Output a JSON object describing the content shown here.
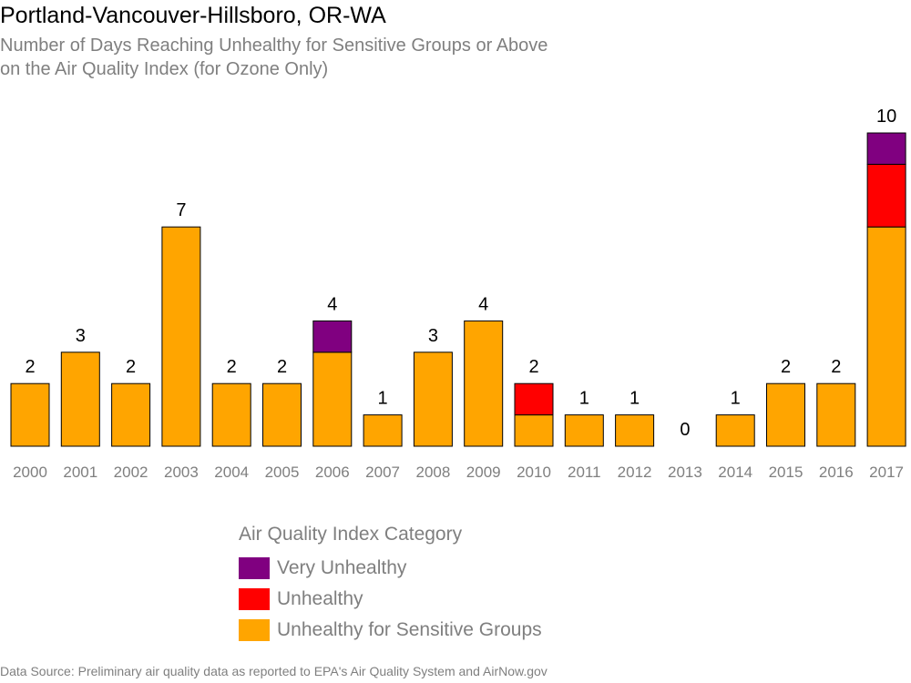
{
  "chart_data": {
    "type": "bar",
    "stacked": true,
    "title": "Portland-Vancouver-Hillsboro, OR-WA",
    "subtitle_lines": [
      "Number of Days Reaching Unhealthy for Sensitive Groups or Above",
      "on the Air Quality Index (for Ozone Only)"
    ],
    "categories": [
      "2000",
      "2001",
      "2002",
      "2003",
      "2004",
      "2005",
      "2006",
      "2007",
      "2008",
      "2009",
      "2010",
      "2011",
      "2012",
      "2013",
      "2014",
      "2015",
      "2016",
      "2017"
    ],
    "series": [
      {
        "name": "Unhealthy for Sensitive Groups",
        "color": "#FFA500",
        "values": [
          2,
          3,
          2,
          7,
          2,
          2,
          3,
          1,
          3,
          4,
          1,
          1,
          1,
          0,
          1,
          2,
          2,
          7
        ]
      },
      {
        "name": "Unhealthy",
        "color": "#FF0000",
        "values": [
          0,
          0,
          0,
          0,
          0,
          0,
          0,
          0,
          0,
          0,
          1,
          0,
          0,
          0,
          0,
          0,
          0,
          2
        ]
      },
      {
        "name": "Very Unhealthy",
        "color": "#800080",
        "values": [
          0,
          0,
          0,
          0,
          0,
          0,
          1,
          0,
          0,
          0,
          0,
          0,
          0,
          0,
          0,
          0,
          0,
          1
        ]
      }
    ],
    "totals": [
      "2",
      "3",
      "2",
      "7",
      "2",
      "2",
      "4",
      "1",
      "3",
      "4",
      "2",
      "1",
      "1",
      "0",
      "1",
      "2",
      "2",
      "10"
    ],
    "ylim": [
      0,
      10
    ],
    "grid": false,
    "legend": {
      "title": "Air Quality Index Category",
      "placement": "bottom-center",
      "items": [
        {
          "label": "Very Unhealthy",
          "color": "#800080"
        },
        {
          "label": "Unhealthy",
          "color": "#FF0000"
        },
        {
          "label": "Unhealthy for Sensitive Groups",
          "color": "#FFA500"
        }
      ]
    }
  },
  "source": "Data Source: Preliminary air quality data as reported to EPA's Air Quality System and AirNow.gov"
}
